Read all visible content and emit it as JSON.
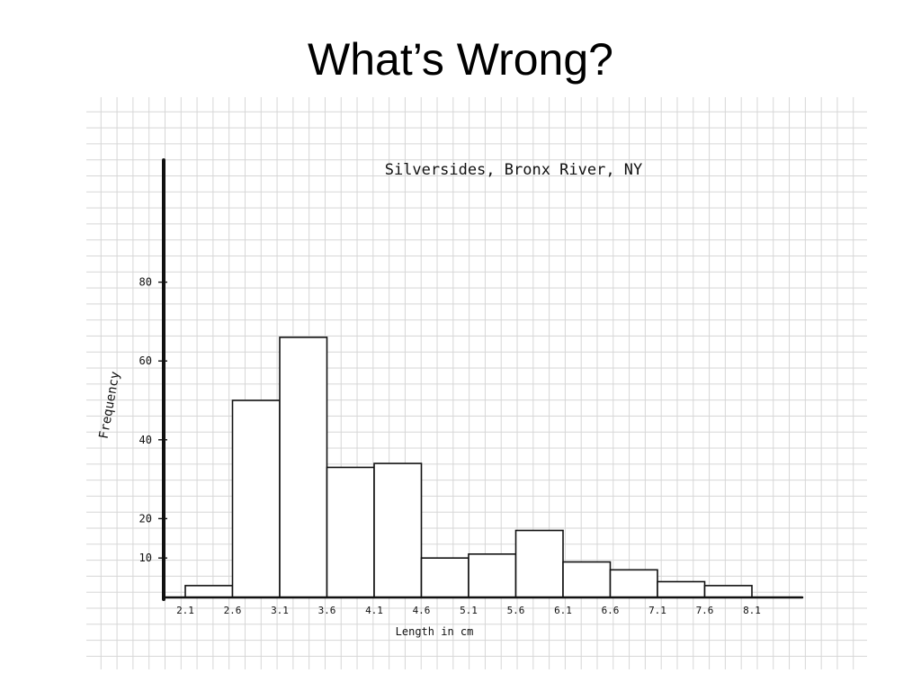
{
  "slide": {
    "title": "What’s Wrong?"
  },
  "chart_data": {
    "type": "bar",
    "title": "Silversides, Bronx River, NY",
    "xlabel": "Length in cm",
    "ylabel": "Frequency",
    "categories": [
      "2.1–2.6",
      "2.6–3.1",
      "3.1–3.6",
      "3.6–4.1",
      "4.1–4.6",
      "4.6–5.1",
      "5.1–5.6",
      "5.6–6.1",
      "6.1–6.6",
      "6.6–7.1",
      "7.1–7.6",
      "7.6–8.1"
    ],
    "x_ticks": [
      "2.1",
      "2.6",
      "3.1",
      "3.6",
      "4.1",
      "4.6",
      "5.1",
      "5.6",
      "6.1",
      "6.6",
      "7.1",
      "7.6",
      "8.1"
    ],
    "y_ticks": [
      {
        "label": "10",
        "value": 10
      },
      {
        "label": "20",
        "value": 20
      },
      {
        "label": "40",
        "value": 40
      },
      {
        "label": "60",
        "value": 60
      },
      {
        "label": "80",
        "value": 80
      }
    ],
    "values": [
      3,
      50,
      66,
      33,
      34,
      10,
      11,
      17,
      9,
      7,
      4,
      3
    ],
    "grid": true,
    "colors": {
      "bar_fill": "#ffffff",
      "bar_stroke": "#111111",
      "axis": "#111111",
      "grid": "#d6d6d6"
    }
  }
}
